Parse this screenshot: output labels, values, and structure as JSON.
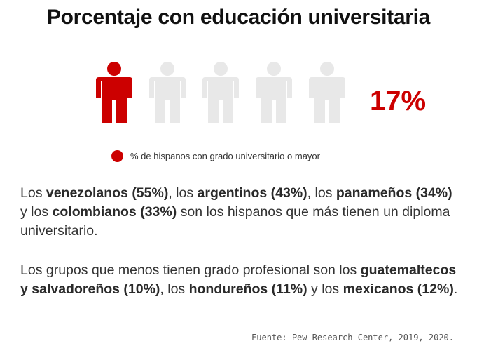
{
  "title": "Porcentaje con educación universitaria",
  "chart_data": {
    "type": "pictogram",
    "icons_total": 5,
    "icons_filled": 1,
    "value": 17,
    "value_label": "17%",
    "legend": "% de hispanos con grado universitario o mayor",
    "filled_color": "#cc0000",
    "empty_color": "#e8e8e8"
  },
  "paragraph1": {
    "s1": "Los ",
    "b1": "venezolanos (55%)",
    "s2": ", los ",
    "b2": "argentinos (43%)",
    "s3": ", los ",
    "b3": "panameños (34%)",
    "s4": " y los ",
    "b4": "colombianos (33%)",
    "s5": " son los hispanos que más tienen un diploma universitario."
  },
  "paragraph2": {
    "s1": "Los grupos que menos tienen grado profesional son los ",
    "b1": "guatemaltecos y salvadoreños (10%)",
    "s2": ", los ",
    "b2": "hondureños (11%)",
    "s3": " y los ",
    "b3": "mexicanos (12%)",
    "s4": "."
  },
  "source": "Fuente: Pew Research Center, 2019, 2020."
}
